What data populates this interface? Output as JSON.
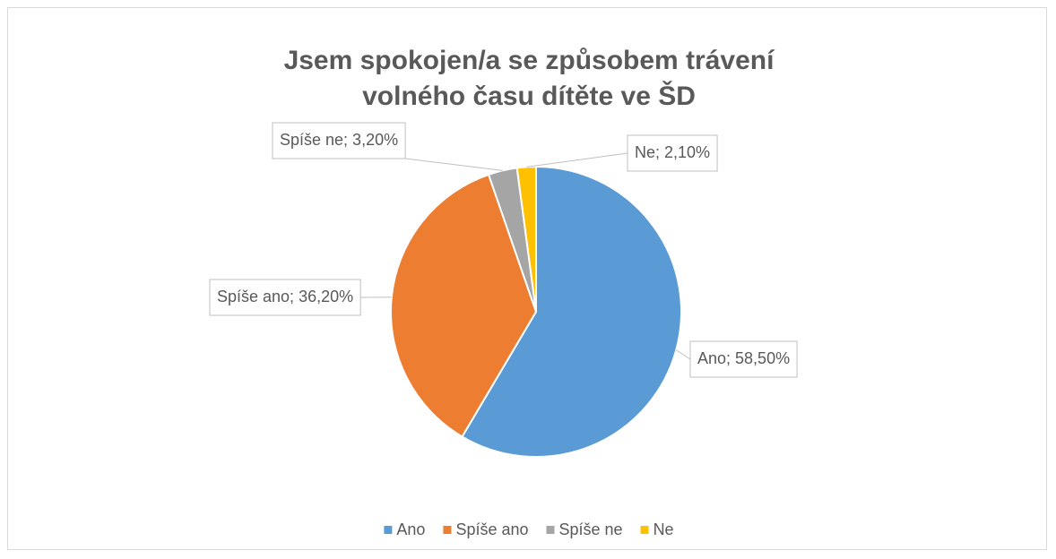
{
  "chart_data": {
    "type": "pie",
    "title": "Jsem spokojen/a se způsobem trávení volného času dítěte ve ŠD",
    "categories": [
      "Ano",
      "Spíše ano",
      "Spíše ne",
      "Ne"
    ],
    "values": [
      58.5,
      36.2,
      3.2,
      2.1
    ],
    "value_labels": [
      "Ano; 58,50%",
      "Spíše ano; 36,20%",
      "Spíše ne; 3,20%",
      "Ne; 2,10%"
    ],
    "colors": [
      "#5b9bd5",
      "#ed7d31",
      "#a5a5a5",
      "#ffc000"
    ],
    "legend": "bottom"
  }
}
